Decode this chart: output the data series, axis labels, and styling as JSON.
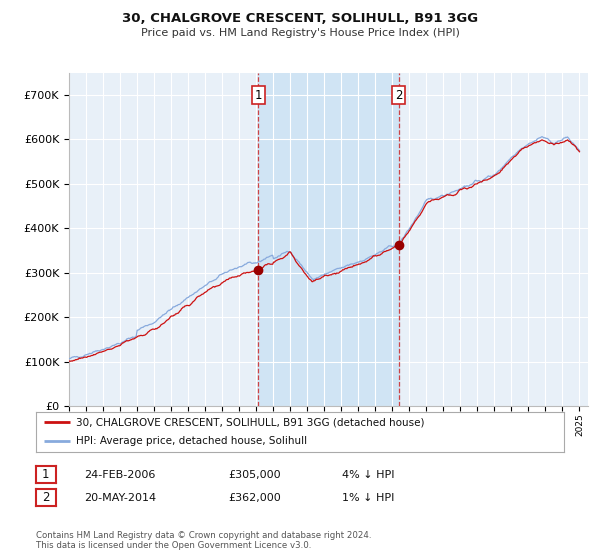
{
  "title": "30, CHALGROVE CRESCENT, SOLIHULL, B91 3GG",
  "subtitle": "Price paid vs. HM Land Registry's House Price Index (HPI)",
  "background_color": "#e8f0f8",
  "figure_bg": "#ffffff",
  "grid_color": "#ffffff",
  "ylim": [
    0,
    750000
  ],
  "yticks": [
    0,
    100000,
    200000,
    300000,
    400000,
    500000,
    600000,
    700000
  ],
  "ytick_labels": [
    "£0",
    "£100K",
    "£200K",
    "£300K",
    "£400K",
    "£500K",
    "£600K",
    "£700K"
  ],
  "xlim_start": 1995,
  "xlim_end": 2025.5,
  "sale1_date": 2006.12,
  "sale1_value": 305000,
  "sale2_date": 2014.38,
  "sale2_value": 362000,
  "prop_color": "#cc1111",
  "hpi_color": "#88aadd",
  "highlight_color": "#d0e4f4",
  "dashed_color": "#cc3333",
  "dot_color": "#990000",
  "legend_line1": "30, CHALGROVE CRESCENT, SOLIHULL, B91 3GG (detached house)",
  "legend_line2": "HPI: Average price, detached house, Solihull",
  "table_row1": [
    "1",
    "24-FEB-2006",
    "£305,000",
    "4% ↓ HPI"
  ],
  "table_row2": [
    "2",
    "20-MAY-2014",
    "£362,000",
    "1% ↓ HPI"
  ],
  "footnote1": "Contains HM Land Registry data © Crown copyright and database right 2024.",
  "footnote2": "This data is licensed under the Open Government Licence v3.0."
}
